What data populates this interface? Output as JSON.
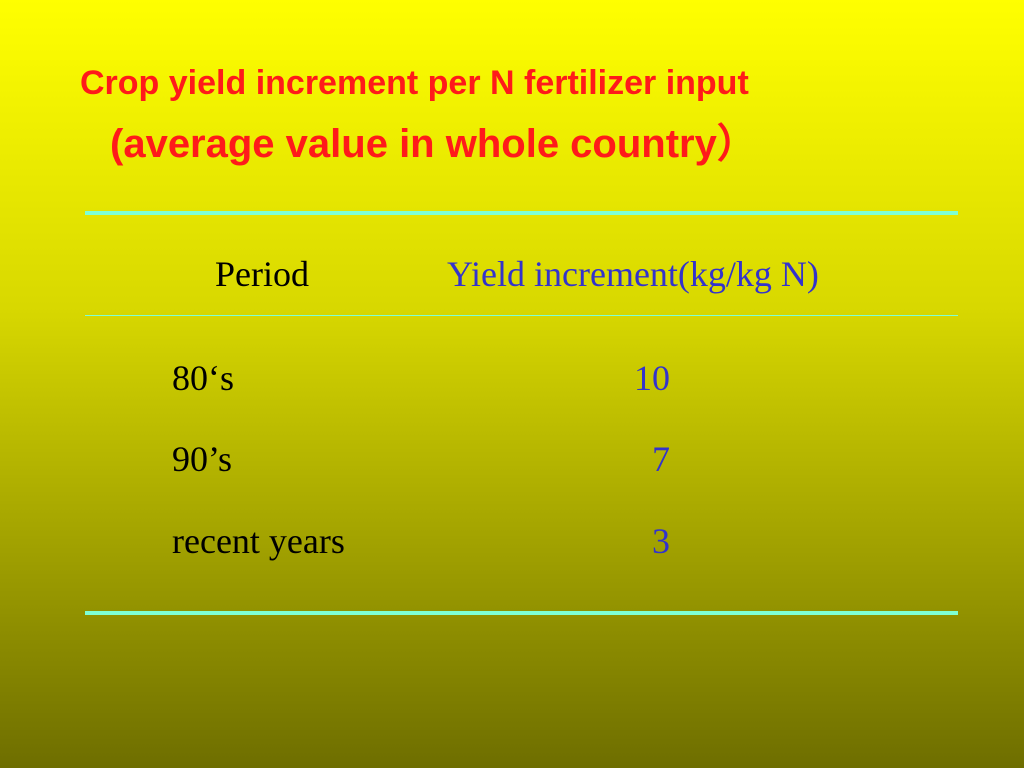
{
  "title": {
    "line1": "Crop yield increment per N fertilizer input",
    "line2": "(average value in whole country）"
  },
  "table": {
    "header": [
      "Period",
      "Yield increment(kg/kg N)"
    ],
    "rows": [
      [
        "80‘s",
        10
      ],
      [
        "90’s",
        7
      ],
      [
        "recent years",
        3
      ]
    ]
  }
}
